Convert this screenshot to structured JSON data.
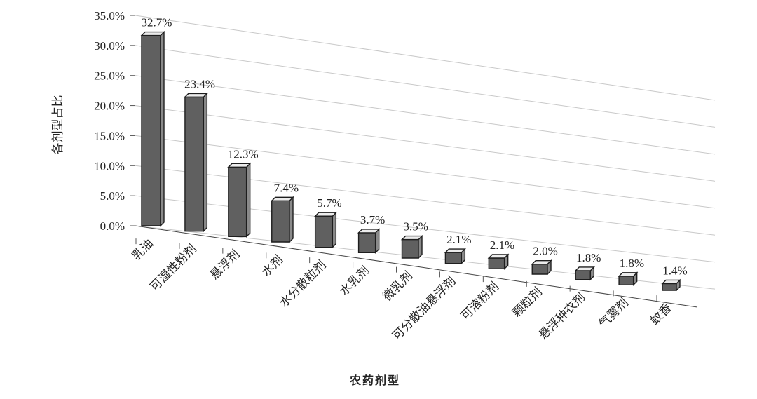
{
  "chart_data": {
    "type": "bar",
    "title": "",
    "xlabel": "农药剂型",
    "ylabel": "各剂型占比",
    "ylim": [
      0,
      35
    ],
    "y_ticks": [
      "0.0%",
      "5.0%",
      "10.0%",
      "15.0%",
      "20.0%",
      "25.0%",
      "30.0%",
      "35.0%"
    ],
    "grid": true,
    "style": "3d-perspective",
    "categories": [
      "乳油",
      "可湿性粉剂",
      "悬浮剂",
      "水剂",
      "水分散粒剂",
      "水乳剂",
      "微乳剂",
      "可分散油悬浮剂",
      "可溶粉剂",
      "颗粒剂",
      "悬浮种衣剂",
      "气雾剂",
      "蚊香"
    ],
    "values": [
      32.7,
      23.4,
      12.3,
      7.4,
      5.7,
      3.7,
      3.5,
      2.1,
      2.1,
      2.0,
      1.8,
      1.8,
      1.4
    ],
    "data_labels": [
      "32.7%",
      "23.4%",
      "12.3%",
      "7.4%",
      "5.7%",
      "3.7%",
      "3.5%",
      "2.1%",
      "2.1%",
      "2.0%",
      "1.8%",
      "1.8%",
      "1.4%"
    ],
    "colors": {
      "bar_front": "#606060",
      "bar_side": "#8a8a8a",
      "bar_top": "#ececec",
      "bar_edge": "#1e1e1e",
      "grid": "#c8c8c8"
    }
  }
}
